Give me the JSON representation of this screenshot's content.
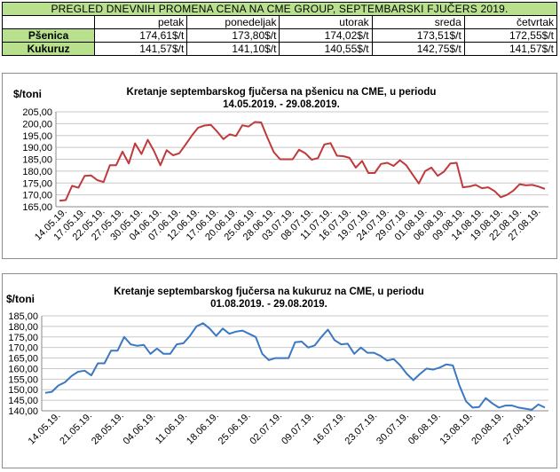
{
  "table": {
    "title": "PREGLED DNEVNIH PROMENA CENA NA CME GROUP, SEPTEMBARSKI  FJUČERS 2019.",
    "days": [
      "petak",
      "ponedeljak",
      "utorak",
      "sreda",
      "četvrtak"
    ],
    "rows": [
      {
        "label": "Pšenica",
        "values": [
          "174,61$/t",
          "173,80$/t",
          "174,02$/t",
          "173,51$/t",
          "172,55$/t"
        ]
      },
      {
        "label": "Kukuruz",
        "values": [
          "141,57$/t",
          "141,10$/t",
          "140,55$/t",
          "142,75$/t",
          "141,57$/t"
        ]
      }
    ]
  },
  "chart_data": [
    {
      "type": "line",
      "title_line1": "Kretanje septembarskog fjučersa na  pšenicu na CME, u periodu",
      "title_line2": "14.05.2019. - 29.08.2019.",
      "ylabel": "$/toni",
      "ylim": [
        165,
        205
      ],
      "yticks": [
        "165,00",
        "170,00",
        "175,00",
        "180,00",
        "185,00",
        "190,00",
        "195,00",
        "200,00",
        "205,00"
      ],
      "grid": true,
      "color": "#c0393b",
      "xticks": [
        "14.05.19.",
        "17.05.19.",
        "22.05.19.",
        "27.05.19.",
        "30.05.19.",
        "04.06.19.",
        "07.06.19.",
        "12.06.19.",
        "17.06.19.",
        "20.06.19.",
        "25.06.19.",
        "28.06.19.",
        "03.07.19.",
        "08.07.19.",
        "11.07.19.",
        "16.07.19.",
        "19.07.19.",
        "24.07.19.",
        "29.07.19.",
        "01.08.19.",
        "06.08.19.",
        "09.08.19.",
        "14.08.19.",
        "19.08.19.",
        "22.08.19.",
        "27.08.19."
      ],
      "values": [
        167.5,
        167.8,
        173.8,
        173.0,
        178.0,
        178.2,
        176.2,
        175.4,
        182.5,
        182.5,
        188.2,
        183.2,
        191.7,
        187.2,
        193.2,
        188.4,
        182.5,
        188.8,
        186.7,
        187.5,
        191.2,
        195.0,
        198.3,
        199.2,
        199.5,
        196.7,
        193.5,
        195.5,
        194.8,
        199.3,
        198.8,
        200.7,
        200.5,
        194.0,
        188.0,
        185.0,
        185.0,
        185.0,
        189.0,
        187.5,
        184.8,
        185.5,
        191.2,
        191.8,
        186.5,
        186.3,
        185.6,
        181.5,
        184.3,
        179.2,
        179.2,
        183.0,
        183.5,
        182.2,
        184.6,
        182.5,
        178.6,
        174.8,
        180.0,
        181.5,
        178.0,
        179.8,
        183.2,
        183.5,
        173.2,
        173.5,
        174.2,
        172.8,
        173.2,
        171.6,
        169.0,
        170.0,
        171.8,
        174.5,
        174.0,
        174.2,
        173.5,
        172.5
      ]
    },
    {
      "type": "line",
      "title_line1": "Kretanje septembarskog fjučersa na  kukuruz na CME, u periodu",
      "title_line2": "01.08.2019. - 29.08.2019.",
      "ylabel": "$/toni",
      "ylim": [
        140,
        185
      ],
      "yticks": [
        "140,00",
        "145,00",
        "150,00",
        "155,00",
        "160,00",
        "165,00",
        "170,00",
        "175,00",
        "180,00",
        "185,00"
      ],
      "grid": true,
      "color": "#3a78c2",
      "xticks": [
        "14.05.19.",
        "21.05.19.",
        "28.05.19.",
        "04.06.19.",
        "11.06.19.",
        "18.06.19.",
        "25.06.19.",
        "02.07.19.",
        "09.07.19.",
        "16.07.19.",
        "23.07.19.",
        "30.07.19.",
        "06.08.19.",
        "13.08.19.",
        "20.08.19.",
        "27.08.19."
      ],
      "values": [
        148.5,
        149.0,
        152.0,
        153.5,
        156.5,
        158.5,
        159.0,
        156.8,
        162.5,
        162.5,
        168.5,
        168.5,
        175.0,
        171.5,
        170.8,
        171.2,
        167.0,
        169.5,
        167.0,
        167.0,
        171.5,
        172.0,
        175.5,
        180.0,
        181.5,
        179.0,
        175.5,
        179.0,
        176.5,
        177.5,
        178.0,
        176.5,
        175.0,
        167.0,
        164.0,
        165.0,
        165.0,
        165.0,
        172.5,
        172.8,
        170.0,
        171.0,
        175.0,
        178.5,
        173.5,
        171.5,
        171.8,
        167.0,
        170.0,
        167.5,
        167.5,
        166.0,
        163.8,
        164.5,
        161.5,
        157.5,
        154.5,
        157.5,
        160.0,
        159.5,
        160.5,
        162.0,
        161.5,
        152.0,
        144.5,
        141.5,
        141.8,
        146.0,
        143.5,
        141.5,
        142.5,
        142.5,
        141.5,
        141.0,
        140.5,
        143.0,
        141.5
      ]
    }
  ]
}
